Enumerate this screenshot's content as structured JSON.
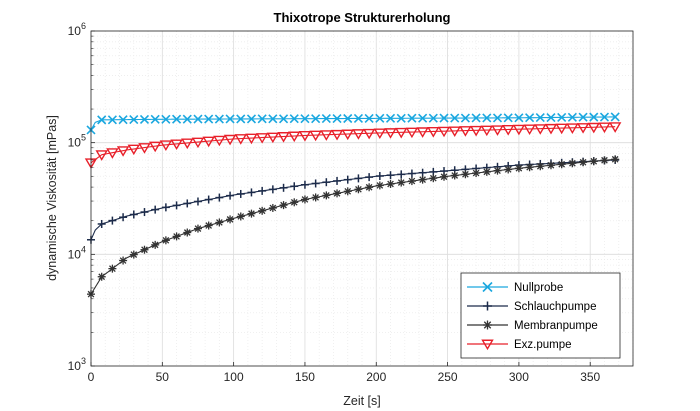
{
  "chart_data": {
    "type": "line",
    "title": "Thixotrope Strukturerholung",
    "xlabel": "Zeit [s]",
    "ylabel": "dynamische Viskosität [mPas]",
    "xlim": [
      0,
      380
    ],
    "ylim": [
      1000,
      1000000
    ],
    "yscale": "log",
    "grid": true,
    "minor_grid": true,
    "legend_position": "bottom-right",
    "xticks": [
      0,
      50,
      100,
      150,
      200,
      250,
      300,
      350
    ],
    "yticks": [
      {
        "value": 1000,
        "base": "10",
        "exp": "3"
      },
      {
        "value": 10000,
        "base": "10",
        "exp": "4"
      },
      {
        "value": 100000,
        "base": "10",
        "exp": "5"
      },
      {
        "value": 1000000,
        "base": "10",
        "exp": "6"
      }
    ],
    "marker_interval_s": 7.5,
    "x_end": 367.5,
    "series": [
      {
        "name": "Nullprobe",
        "color": "#1AA7DF",
        "marker": "x",
        "anchors": [
          [
            0,
            130000
          ],
          [
            3,
            152000
          ],
          [
            7.5,
            160000
          ],
          [
            50,
            162000
          ],
          [
            100,
            163000
          ],
          [
            200,
            165000
          ],
          [
            300,
            167000
          ],
          [
            367.5,
            170000
          ]
        ]
      },
      {
        "name": "Schlauchpumpe",
        "color": "#1C2B4A",
        "marker": "plus",
        "anchors": [
          [
            0,
            13500
          ],
          [
            3,
            16500
          ],
          [
            7.5,
            18700
          ],
          [
            25,
            22000
          ],
          [
            50,
            26000
          ],
          [
            100,
            34000
          ],
          [
            150,
            42000
          ],
          [
            200,
            50000
          ],
          [
            250,
            56000
          ],
          [
            300,
            63000
          ],
          [
            367.5,
            70000
          ]
        ]
      },
      {
        "name": "Membranpumpe",
        "color": "#333333",
        "marker": "asterisk",
        "anchors": [
          [
            0,
            4400
          ],
          [
            7.5,
            6300
          ],
          [
            25,
            9300
          ],
          [
            50,
            13000
          ],
          [
            75,
            17000
          ],
          [
            100,
            21000
          ],
          [
            150,
            31000
          ],
          [
            200,
            41000
          ],
          [
            250,
            50000
          ],
          [
            300,
            59000
          ],
          [
            367.5,
            71000
          ]
        ]
      },
      {
        "name": "Exz.pumpe",
        "color": "#E8202A",
        "marker": "triangle-down",
        "anchors": [
          [
            0,
            66000
          ],
          [
            7.5,
            78000
          ],
          [
            25,
            86000
          ],
          [
            50,
            95000
          ],
          [
            100,
            108000
          ],
          [
            150,
            116000
          ],
          [
            200,
            122000
          ],
          [
            250,
            127000
          ],
          [
            300,
            132000
          ],
          [
            367.5,
            139000
          ]
        ]
      }
    ]
  }
}
